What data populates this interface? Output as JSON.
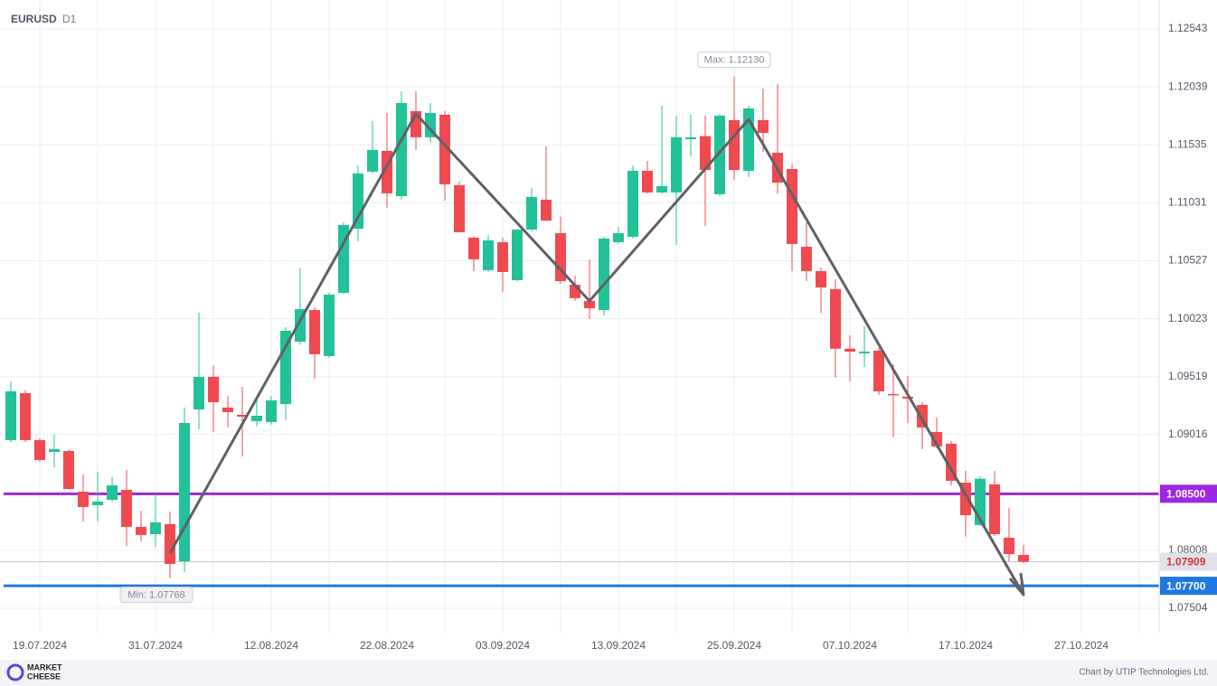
{
  "chart_data": {
    "type": "candlestick",
    "symbol": "EURUSD",
    "timeframe": "D1",
    "categories": [
      null,
      null,
      "19.07.2024",
      null,
      null,
      null,
      null,
      null,
      null,
      null,
      "31.07.2024",
      null,
      null,
      null,
      null,
      null,
      null,
      null,
      "12.08.2024",
      null,
      null,
      null,
      null,
      null,
      null,
      null,
      "22.08.2024",
      null,
      null,
      null,
      null,
      null,
      null,
      null,
      "03.09.2024",
      null,
      null,
      null,
      null,
      null,
      null,
      null,
      "13.09.2024",
      null,
      null,
      null,
      null,
      null,
      null,
      null,
      "25.09.2024",
      null,
      null,
      null,
      null,
      null,
      null,
      null,
      "07.10.2024",
      null,
      null,
      null,
      null,
      null,
      null,
      null,
      "17.10.2024",
      null,
      null,
      null,
      null,
      null,
      null,
      null,
      "27.10.2024",
      null,
      null,
      null,
      null,
      null
    ],
    "open": [
      1.08967,
      1.09375,
      1.08967,
      1.08864,
      1.08872,
      1.08518,
      1.08401,
      1.08448,
      1.08534,
      1.08212,
      1.08149,
      1.08236,
      1.07913,
      1.09234,
      1.09517,
      1.0925,
      1.09187,
      1.09132,
      1.09124,
      1.09281,
      1.09823,
      1.10098,
      1.09698,
      1.10248,
      1.10806,
      1.11302,
      1.11483,
      1.11089,
      1.11828,
      1.11601,
      1.11797,
      1.11184,
      1.10728,
      1.10445,
      1.10688,
      1.10358,
      1.10798,
      1.11058,
      1.10767,
      1.10319,
      1.10178,
      1.10098,
      1.10688,
      1.10736,
      1.11309,
      1.11121,
      1.11121,
      1.11584,
      1.11611,
      1.11105,
      1.1175,
      1.11309,
      1.1175,
      1.11466,
      1.11325,
      1.10649,
      1.10437,
      1.1028,
      1.09762,
      1.09722,
      1.09745,
      1.09368,
      1.09345,
      1.09273,
      1.09038,
      1.08936,
      1.08597,
      1.08228,
      1.08582,
      1.08118,
      1.07968,
      null,
      null,
      null,
      null,
      null,
      null,
      null,
      null,
      null
    ],
    "high": [
      1.09478,
      1.09399,
      1.08982,
      1.09014,
      1.08888,
      1.08668,
      1.08692,
      1.08645,
      1.08708,
      1.08351,
      1.08495,
      1.08345,
      1.0925,
      1.10075,
      1.09617,
      1.09351,
      1.0943,
      1.09312,
      1.09351,
      1.09949,
      1.1046,
      1.10122,
      1.10248,
      1.10862,
      1.11356,
      1.11742,
      1.11812,
      1.12001,
      1.12001,
      1.11899,
      1.11828,
      1.11215,
      1.10736,
      1.10751,
      1.10728,
      1.10806,
      1.1116,
      1.11522,
      1.10909,
      1.10398,
      1.10539,
      1.10736,
      1.10822,
      1.11356,
      1.11395,
      1.11875,
      1.11789,
      1.11797,
      1.11789,
      1.11805,
      1.1213,
      1.11876,
      1.12025,
      1.12064,
      1.11372,
      1.10862,
      1.10468,
      1.10365,
      1.09878,
      1.09957,
      1.09769,
      1.09627,
      1.09525,
      1.09297,
      1.09163,
      1.0896,
      1.08699,
      1.08653,
      1.08699,
      1.08377,
      1.08055,
      null,
      null,
      null,
      null,
      null,
      null,
      null,
      null,
      null
    ],
    "low": [
      1.08951,
      1.08951,
      1.08778,
      1.08731,
      1.08534,
      1.08259,
      1.08259,
      1.08432,
      1.08047,
      1.08085,
      1.08039,
      1.07768,
      1.07819,
      1.09061,
      1.09038,
      1.09077,
      1.08825,
      1.09085,
      1.09101,
      1.0914,
      1.09796,
      1.09501,
      1.09682,
      1.1024,
      1.10696,
      1.11286,
      1.10987,
      1.11058,
      1.11491,
      1.11553,
      1.1105,
      1.10775,
      1.10437,
      1.10429,
      1.10256,
      1.1035,
      1.10783,
      1.10869,
      1.10327,
      1.10178,
      1.1002,
      1.10051,
      1.10673,
      1.1072,
      1.11113,
      1.11113,
      1.10665,
      1.11436,
      1.1083,
      1.11089,
      1.11231,
      1.11254,
      1.11474,
      1.11113,
      1.10437,
      1.1035,
      1.10075,
      1.09509,
      1.09478,
      1.09603,
      1.09361,
      1.08995,
      1.09116,
      1.08888,
      1.08896,
      1.08573,
      1.08127,
      1.0822,
      1.08134,
      1.07913,
      1.07897,
      null,
      null,
      null,
      null,
      null,
      null,
      null,
      null,
      null
    ],
    "close": [
      1.09391,
      1.08967,
      1.08794,
      1.08888,
      1.08542,
      1.08385,
      1.08432,
      1.08573,
      1.08212,
      1.08142,
      1.08252,
      1.0789,
      1.09116,
      1.09517,
      1.09297,
      1.0921,
      1.09171,
      1.09179,
      1.09312,
      1.09918,
      1.10106,
      1.09714,
      1.10232,
      1.10838,
      1.11286,
      1.11491,
      1.11113,
      1.11899,
      1.11601,
      1.11812,
      1.11192,
      1.10775,
      1.10539,
      1.10704,
      1.10429,
      1.10798,
      1.11082,
      1.10877,
      1.1035,
      1.10202,
      1.10114,
      1.1072,
      1.10767,
      1.11309,
      1.11121,
      1.11176,
      1.11601,
      1.11601,
      1.11317,
      1.11789,
      1.11317,
      1.11852,
      1.11639,
      1.11207,
      1.10673,
      1.10437,
      1.10295,
      1.09762,
      1.09737,
      1.09737,
      1.09391,
      1.09361,
      1.09328,
      1.09077,
      1.08912,
      1.08613,
      1.08314,
      1.08631,
      1.08149,
      1.07976,
      1.07909,
      null,
      null,
      null,
      null,
      null,
      null,
      null,
      null,
      null
    ],
    "up_color": "#22c197",
    "down_color": "#ef4a50",
    "ylim": [
      1.07292,
      1.12795
    ],
    "yticks": [
      1.07504,
      1.08008,
      1.09016,
      1.09519,
      1.10023,
      1.10527,
      1.11031,
      1.11535,
      1.12039,
      1.12543
    ],
    "grid": true,
    "levels": [
      {
        "value": 1.085,
        "label": "1.08500",
        "color": "#9c27e0"
      },
      {
        "value": 1.077,
        "label": "1.07700",
        "color": "#1e78e0"
      }
    ],
    "max_label": "Max: 1.12130",
    "min_label": "Min: 1.07768",
    "credit": "Chart by UTIP Technologies Ltd.",
    "brand": [
      "MARKET",
      "CHEESE"
    ]
  }
}
